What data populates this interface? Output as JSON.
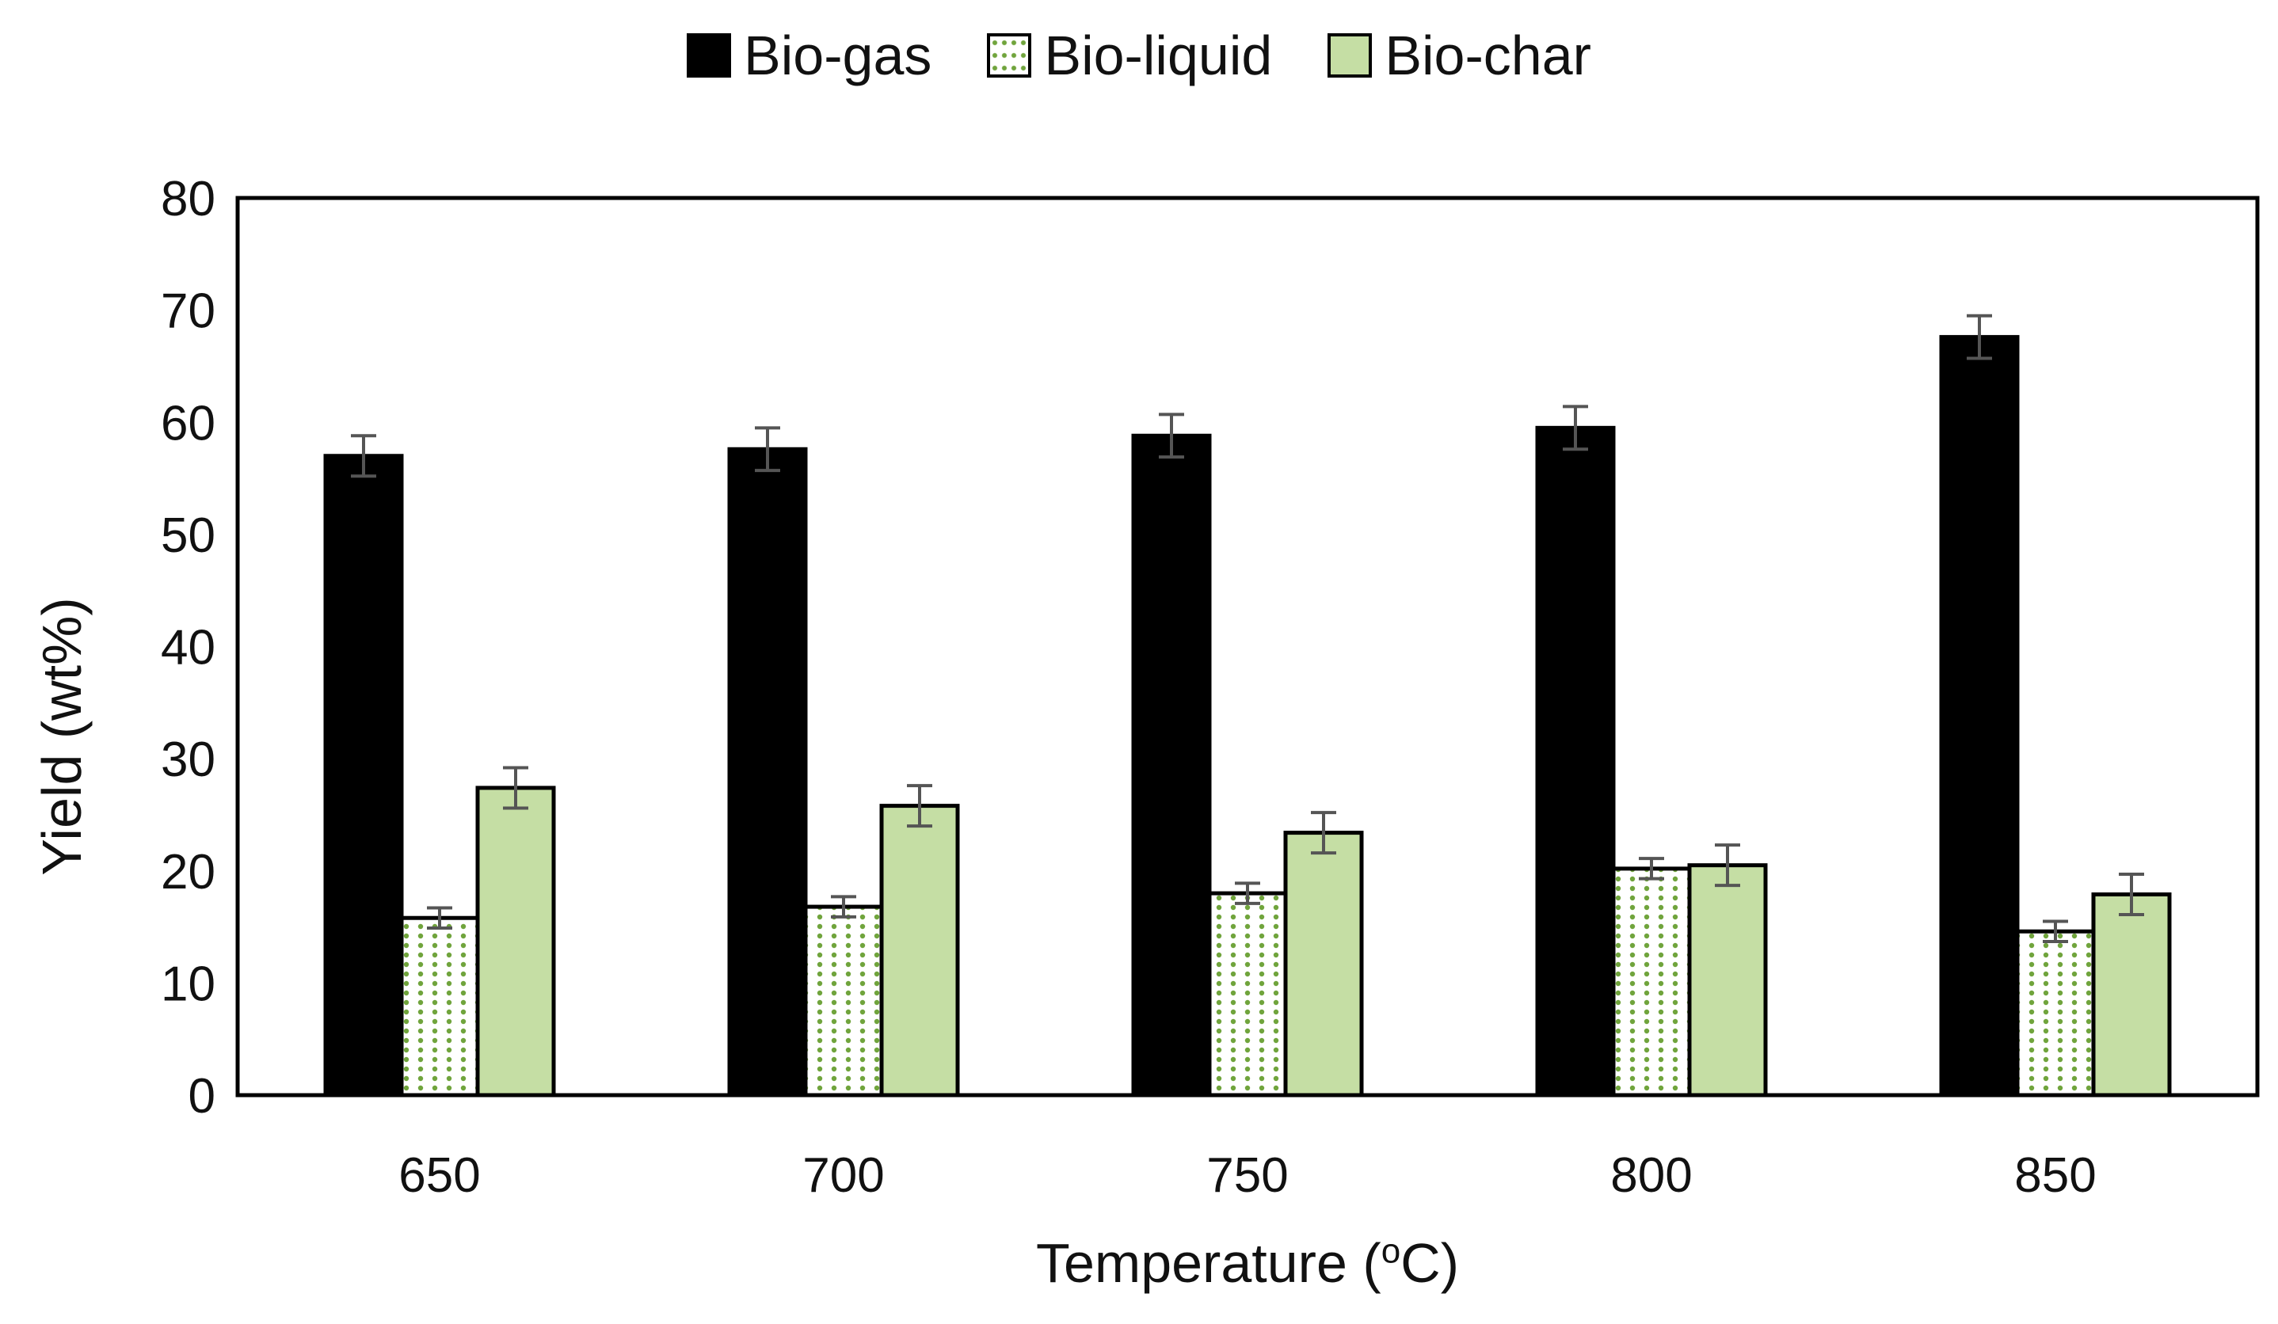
{
  "chart_data": {
    "type": "bar",
    "title": "",
    "xlabel": "Temperature (oC)",
    "xlabel_parts": {
      "prefix": "Temperature (",
      "superscript": "o",
      "suffix": "C)"
    },
    "ylabel": "Yield (wt%)",
    "ylim": [
      0,
      80
    ],
    "yticks": [
      0,
      10,
      20,
      30,
      40,
      50,
      60,
      70,
      80
    ],
    "categories": [
      "650",
      "700",
      "750",
      "800",
      "850"
    ],
    "legend_position": "top-center",
    "grid": false,
    "series": [
      {
        "name": "Bio-gas",
        "color": "#000000",
        "pattern": "solid",
        "values": [
          57.0,
          57.6,
          58.8,
          59.5,
          67.6
        ],
        "errors": [
          1.8,
          1.9,
          1.9,
          1.9,
          1.9
        ]
      },
      {
        "name": "Bio-liquid",
        "color": "#ffffff",
        "pattern": "dotted",
        "pattern_color": "#70a43c",
        "values": [
          15.8,
          16.8,
          18.0,
          20.2,
          14.6
        ],
        "errors": [
          0.9,
          0.9,
          0.9,
          0.9,
          0.9
        ]
      },
      {
        "name": "Bio-char",
        "color": "#c5dea4",
        "pattern": "solid",
        "values": [
          27.4,
          25.8,
          23.4,
          20.5,
          17.9
        ],
        "errors": [
          1.8,
          1.8,
          1.8,
          1.8,
          1.8
        ]
      }
    ]
  }
}
